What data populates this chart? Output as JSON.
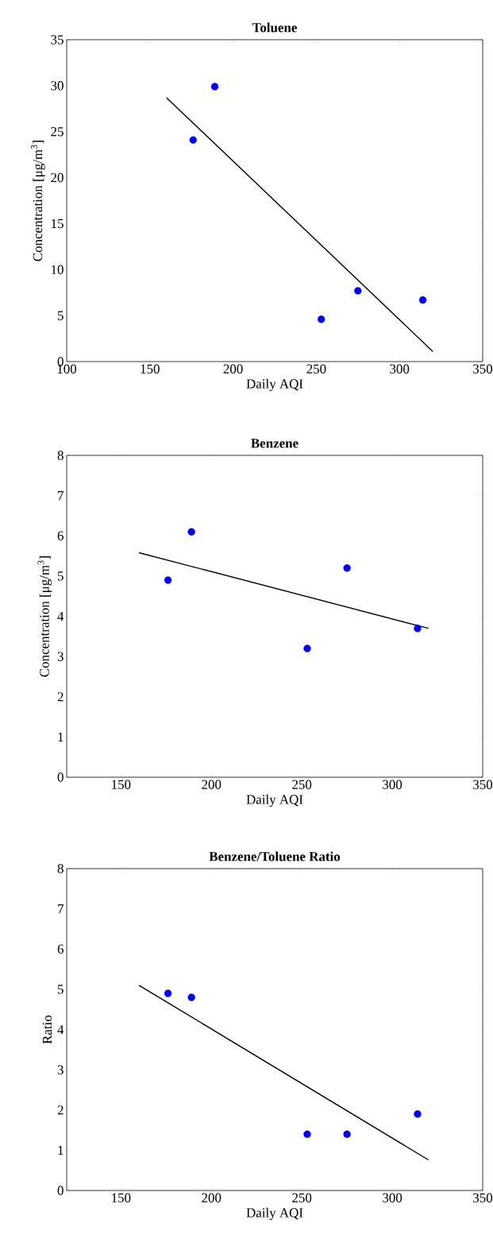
{
  "chart_data": [
    {
      "type": "scatter",
      "title": "Toluene",
      "xlabel": "Daily AQI",
      "ylabel": "Concentration [μg/m$^{3}$]",
      "xlim": [
        100,
        350
      ],
      "ylim": [
        0,
        35
      ],
      "xticks": [
        100,
        150,
        200,
        250,
        300,
        350
      ],
      "yticks": [
        0,
        5,
        10,
        15,
        20,
        25,
        30,
        35
      ],
      "series": [
        {
          "marker": "circle",
          "color": "#0000ff",
          "x": [
            176,
            189,
            253,
            275,
            314
          ],
          "values": [
            24.1,
            29.9,
            4.6,
            7.7,
            6.7
          ]
        },
        {
          "type": "line",
          "marker": "none",
          "color": "#000000",
          "x": [
            160,
            320
          ],
          "values": [
            28.7,
            1.1
          ]
        }
      ]
    },
    {
      "type": "scatter",
      "title": "Benzene",
      "xlabel": "Daily AQI",
      "ylabel": "Concentration [μg/m$^{3}$]",
      "xlim": [
        120,
        350
      ],
      "ylim": [
        0,
        8
      ],
      "xticks": [
        150,
        200,
        250,
        300,
        350
      ],
      "yticks": [
        0,
        1,
        2,
        3,
        4,
        5,
        6,
        7,
        8
      ],
      "series": [
        {
          "marker": "circle",
          "color": "#0000ff",
          "x": [
            176,
            189,
            253,
            275,
            314
          ],
          "values": [
            4.9,
            6.1,
            3.2,
            5.2,
            3.7
          ]
        },
        {
          "type": "line",
          "marker": "none",
          "color": "#000000",
          "x": [
            160,
            320
          ],
          "values": [
            5.58,
            3.7
          ]
        }
      ]
    },
    {
      "type": "scatter",
      "title": "Benzene/Toluene Ratio",
      "xlabel": "Daily AQI",
      "ylabel": "Ratio",
      "xlim": [
        120,
        350
      ],
      "ylim": [
        0,
        8
      ],
      "xticks": [
        150,
        200,
        250,
        300,
        350
      ],
      "yticks": [
        0,
        1,
        2,
        3,
        4,
        5,
        6,
        7,
        8
      ],
      "series": [
        {
          "marker": "circle",
          "color": "#0000ff",
          "x": [
            176,
            189,
            253,
            275,
            314
          ],
          "values": [
            4.9,
            4.8,
            1.4,
            1.4,
            1.9
          ]
        },
        {
          "type": "line",
          "marker": "none",
          "color": "#000000",
          "x": [
            160,
            320
          ],
          "values": [
            5.1,
            0.76
          ]
        }
      ]
    }
  ]
}
